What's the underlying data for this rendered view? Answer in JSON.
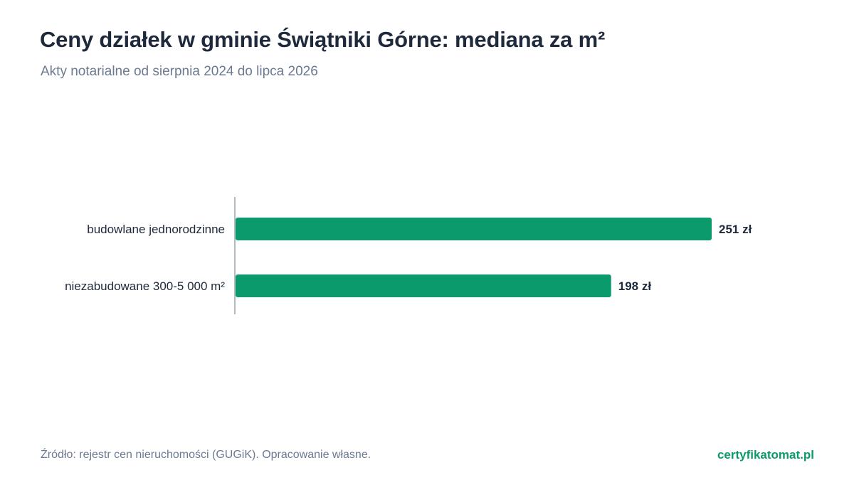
{
  "chart_data": {
    "type": "bar",
    "orientation": "horizontal",
    "title": "Ceny działek w gminie Świątniki Górne: mediana za m²",
    "subtitle": "Akty notarialne od sierpnia 2024 do lipca 2026",
    "categories": [
      "budowlane jednorodzinne",
      "niezabudowane 300-5 000 m²"
    ],
    "values": [
      251,
      198
    ],
    "value_labels": [
      "251 zł",
      "198 zł"
    ],
    "xlim": [
      0,
      251
    ],
    "grid": false,
    "legend": "none",
    "colors": {
      "bar": "#0a9a6c",
      "title": "#1e293b",
      "muted": "#6b7a90",
      "axis": "#9aa3ad"
    }
  },
  "footer": {
    "source": "Źródło: rejestr cen nieruchomości (GUGiK). Opracowanie własne.",
    "brand": "certyfikatomat.pl"
  }
}
